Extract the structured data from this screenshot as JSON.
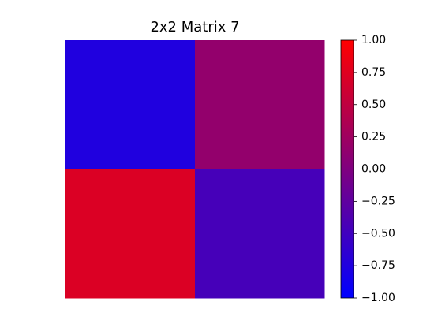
{
  "chart_data": {
    "type": "heatmap",
    "title": "2x2 Matrix 7",
    "xlabel": "",
    "ylabel": "",
    "rows": 2,
    "cols": 2,
    "values": [
      [
        -0.75,
        0.15
      ],
      [
        0.72,
        -0.45
      ]
    ],
    "colorbar": {
      "vmin": -1.0,
      "vmax": 1.0,
      "ticks": [
        1.0,
        0.75,
        0.5,
        0.25,
        0.0,
        -0.25,
        -0.5,
        -0.75,
        -1.0
      ],
      "tick_labels": [
        "1.00",
        "0.75",
        "0.50",
        "0.25",
        "0.00",
        "−0.25",
        "−0.50",
        "−0.75",
        "−1.00"
      ],
      "low_color": "#0000ff",
      "high_color": "#ff0000"
    },
    "axes_visible": false,
    "grid": false
  }
}
